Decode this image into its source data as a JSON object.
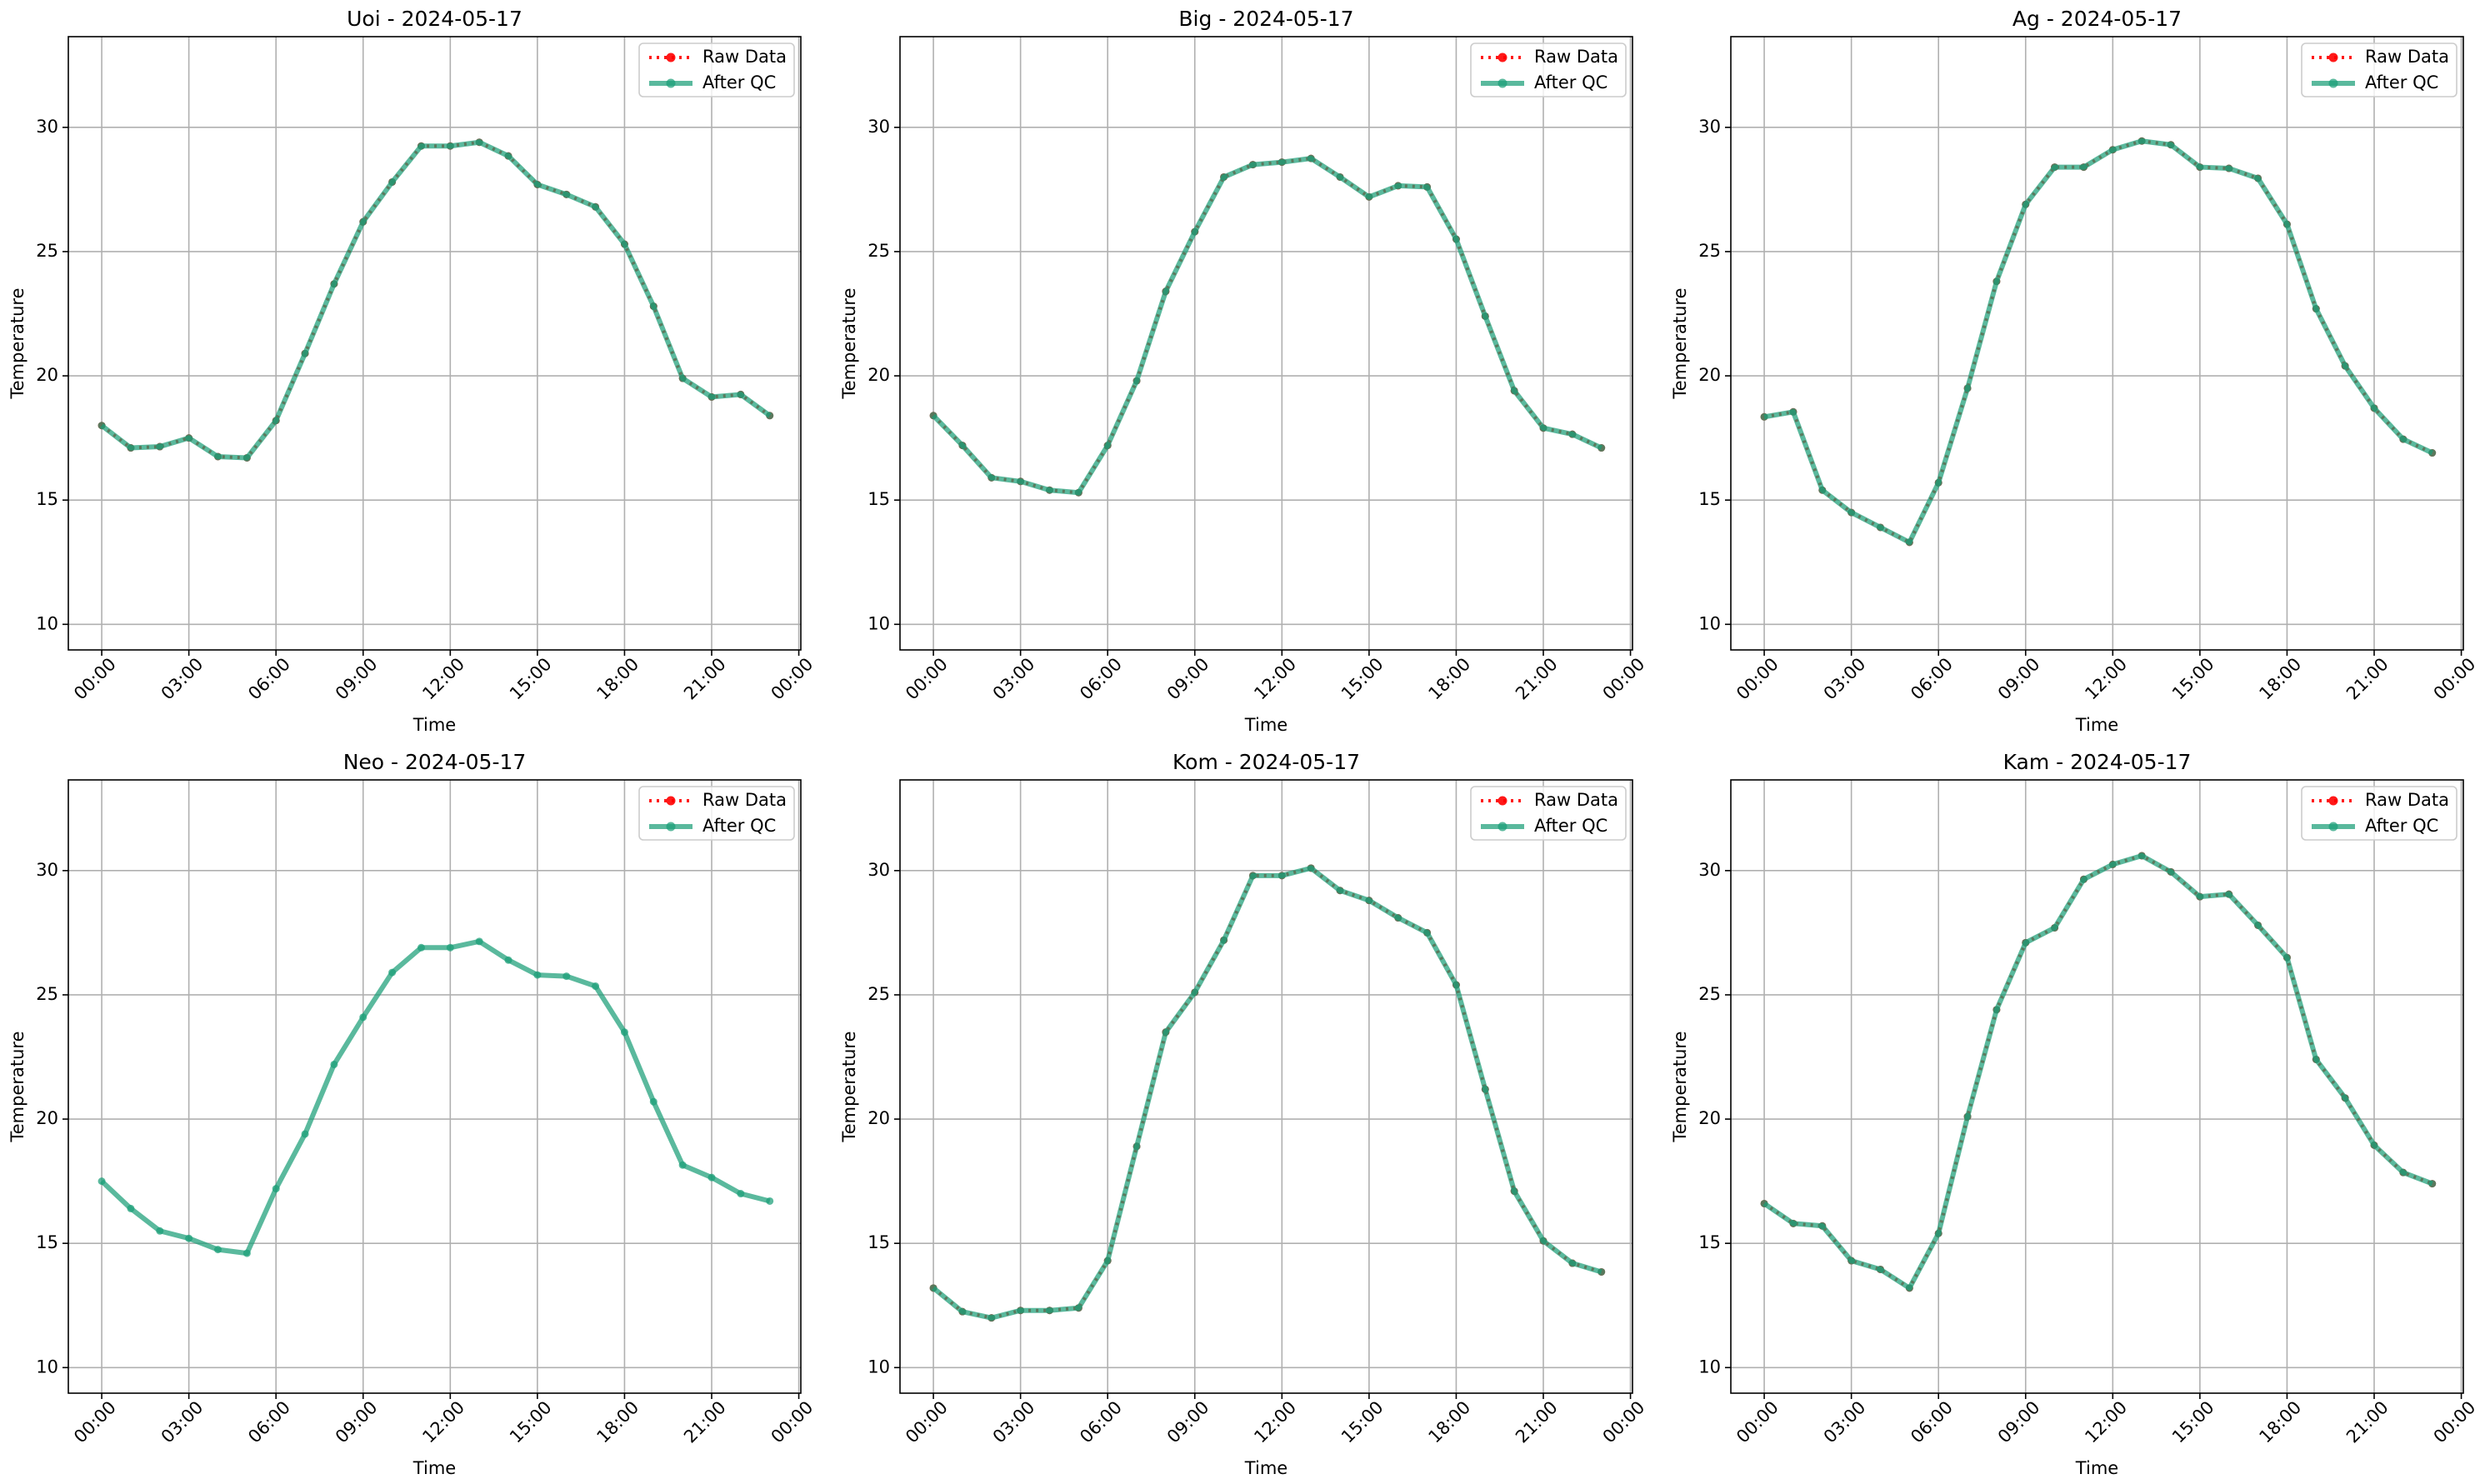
{
  "chart_data": [
    {
      "type": "line",
      "title": "Uoi - 2024-05-17",
      "xlabel": "Time",
      "ylabel": "Temperature",
      "grid": true,
      "legend": "upper right",
      "x": [
        0,
        1,
        2,
        3,
        4,
        5,
        6,
        7,
        8,
        9,
        10,
        11,
        12,
        13,
        14,
        15,
        16,
        17,
        18,
        19,
        20,
        21,
        22,
        23
      ],
      "xlim": [
        -1.15,
        24.07
      ],
      "xticks": [
        {
          "value": 0,
          "label": "00:00"
        },
        {
          "value": 3,
          "label": "03:00"
        },
        {
          "value": 6,
          "label": "06:00"
        },
        {
          "value": 9,
          "label": "09:00"
        },
        {
          "value": 12,
          "label": "12:00"
        },
        {
          "value": 15,
          "label": "15:00"
        },
        {
          "value": 18,
          "label": "18:00"
        },
        {
          "value": 21,
          "label": "21:00"
        },
        {
          "value": 24,
          "label": "00:00"
        }
      ],
      "ylim": [
        8.97,
        33.65
      ],
      "yticks": [
        10,
        15,
        20,
        25,
        30
      ],
      "series": [
        {
          "name": "Raw Data",
          "color": "#ff0000",
          "values": [
            18.0,
            17.1,
            17.15,
            17.5,
            16.75,
            16.7,
            18.2,
            20.9,
            23.7,
            26.2,
            27.8,
            29.25,
            29.25,
            29.4,
            28.85,
            27.7,
            27.3,
            26.8,
            25.3,
            22.8,
            19.9,
            19.15,
            19.25,
            18.4
          ]
        },
        {
          "name": "After QC",
          "color": "#1b9e77",
          "values": [
            18.0,
            17.1,
            17.15,
            17.5,
            16.75,
            16.7,
            18.2,
            20.9,
            23.7,
            26.2,
            27.8,
            29.25,
            29.25,
            29.4,
            28.85,
            27.7,
            27.3,
            26.8,
            25.3,
            22.8,
            19.9,
            19.15,
            19.25,
            18.4
          ]
        }
      ]
    },
    {
      "type": "line",
      "title": "Big - 2024-05-17",
      "xlabel": "Time",
      "ylabel": "Temperature",
      "grid": true,
      "legend": "upper right",
      "x": [
        0,
        1,
        2,
        3,
        4,
        5,
        6,
        7,
        8,
        9,
        10,
        11,
        12,
        13,
        14,
        15,
        16,
        17,
        18,
        19,
        20,
        21,
        22,
        23
      ],
      "xlim": [
        -1.15,
        24.07
      ],
      "xticks": [
        {
          "value": 0,
          "label": "00:00"
        },
        {
          "value": 3,
          "label": "03:00"
        },
        {
          "value": 6,
          "label": "06:00"
        },
        {
          "value": 9,
          "label": "09:00"
        },
        {
          "value": 12,
          "label": "12:00"
        },
        {
          "value": 15,
          "label": "15:00"
        },
        {
          "value": 18,
          "label": "18:00"
        },
        {
          "value": 21,
          "label": "21:00"
        },
        {
          "value": 24,
          "label": "00:00"
        }
      ],
      "ylim": [
        8.97,
        33.65
      ],
      "yticks": [
        10,
        15,
        20,
        25,
        30
      ],
      "series": [
        {
          "name": "Raw Data",
          "color": "#ff0000",
          "values": [
            18.4,
            17.2,
            15.9,
            15.75,
            15.4,
            15.3,
            17.2,
            19.8,
            23.4,
            25.8,
            28.0,
            28.5,
            28.6,
            28.75,
            28.0,
            27.2,
            27.65,
            27.6,
            25.5,
            22.4,
            19.4,
            17.9,
            17.65,
            17.1
          ]
        },
        {
          "name": "After QC",
          "color": "#1b9e77",
          "values": [
            18.4,
            17.2,
            15.9,
            15.75,
            15.4,
            15.3,
            17.2,
            19.8,
            23.4,
            25.8,
            28.0,
            28.5,
            28.6,
            28.75,
            28.0,
            27.2,
            27.65,
            27.6,
            25.5,
            22.4,
            19.4,
            17.9,
            17.65,
            17.1
          ]
        }
      ]
    },
    {
      "type": "line",
      "title": "Ag - 2024-05-17",
      "xlabel": "Time",
      "ylabel": "Temperature",
      "grid": true,
      "legend": "upper right",
      "x": [
        0,
        1,
        2,
        3,
        4,
        5,
        6,
        7,
        8,
        9,
        10,
        11,
        12,
        13,
        14,
        15,
        16,
        17,
        18,
        19,
        20,
        21,
        22,
        23
      ],
      "xlim": [
        -1.15,
        24.07
      ],
      "xticks": [
        {
          "value": 0,
          "label": "00:00"
        },
        {
          "value": 3,
          "label": "03:00"
        },
        {
          "value": 6,
          "label": "06:00"
        },
        {
          "value": 9,
          "label": "09:00"
        },
        {
          "value": 12,
          "label": "12:00"
        },
        {
          "value": 15,
          "label": "15:00"
        },
        {
          "value": 18,
          "label": "18:00"
        },
        {
          "value": 21,
          "label": "21:00"
        },
        {
          "value": 24,
          "label": "00:00"
        }
      ],
      "ylim": [
        8.97,
        33.65
      ],
      "yticks": [
        10,
        15,
        20,
        25,
        30
      ],
      "series": [
        {
          "name": "Raw Data",
          "color": "#ff0000",
          "values": [
            18.35,
            18.55,
            15.4,
            14.5,
            13.9,
            13.3,
            15.7,
            19.5,
            23.8,
            26.9,
            28.4,
            28.4,
            29.1,
            29.45,
            29.3,
            28.4,
            28.35,
            27.95,
            26.1,
            22.7,
            20.4,
            18.7,
            17.45,
            16.9
          ]
        },
        {
          "name": "After QC",
          "color": "#1b9e77",
          "values": [
            18.35,
            18.55,
            15.4,
            14.5,
            13.9,
            13.3,
            15.7,
            19.5,
            23.8,
            26.9,
            28.4,
            28.4,
            29.1,
            29.45,
            29.3,
            28.4,
            28.35,
            27.95,
            26.1,
            22.7,
            20.4,
            18.7,
            17.45,
            16.9
          ]
        }
      ]
    },
    {
      "type": "line",
      "title": "Neo - 2024-05-17",
      "xlabel": "Time",
      "ylabel": "Temperature",
      "grid": true,
      "legend": "upper right",
      "x": [
        0,
        1,
        2,
        3,
        4,
        5,
        6,
        7,
        8,
        9,
        10,
        11,
        12,
        13,
        14,
        15,
        16,
        17,
        18,
        19,
        20,
        21,
        22,
        23
      ],
      "xlim": [
        -1.15,
        24.07
      ],
      "xticks": [
        {
          "value": 0,
          "label": "00:00"
        },
        {
          "value": 3,
          "label": "03:00"
        },
        {
          "value": 6,
          "label": "06:00"
        },
        {
          "value": 9,
          "label": "09:00"
        },
        {
          "value": 12,
          "label": "12:00"
        },
        {
          "value": 15,
          "label": "15:00"
        },
        {
          "value": 18,
          "label": "18:00"
        },
        {
          "value": 21,
          "label": "21:00"
        },
        {
          "value": 24,
          "label": "00:00"
        }
      ],
      "ylim": [
        8.97,
        33.65
      ],
      "yticks": [
        10,
        15,
        20,
        25,
        30
      ],
      "series": [
        {
          "name": "Raw Data",
          "color": "#ff0000",
          "values": [
            null,
            null,
            null,
            null,
            null,
            null,
            null,
            null,
            null,
            null,
            null,
            null,
            null,
            null,
            null,
            null,
            null,
            null,
            null,
            null,
            null,
            null,
            null,
            null
          ]
        },
        {
          "name": "After QC",
          "color": "#1b9e77",
          "values": [
            17.5,
            16.4,
            15.5,
            15.2,
            14.75,
            14.6,
            17.2,
            19.4,
            22.2,
            24.1,
            25.9,
            26.9,
            26.9,
            27.15,
            26.4,
            25.8,
            25.75,
            25.35,
            23.5,
            20.7,
            18.15,
            17.65,
            17.0,
            16.7
          ]
        }
      ]
    },
    {
      "type": "line",
      "title": "Kom - 2024-05-17",
      "xlabel": "Time",
      "ylabel": "Temperature",
      "grid": true,
      "legend": "upper right",
      "x": [
        0,
        1,
        2,
        3,
        4,
        5,
        6,
        7,
        8,
        9,
        10,
        11,
        12,
        13,
        14,
        15,
        16,
        17,
        18,
        19,
        20,
        21,
        22,
        23
      ],
      "xlim": [
        -1.15,
        24.07
      ],
      "xticks": [
        {
          "value": 0,
          "label": "00:00"
        },
        {
          "value": 3,
          "label": "03:00"
        },
        {
          "value": 6,
          "label": "06:00"
        },
        {
          "value": 9,
          "label": "09:00"
        },
        {
          "value": 12,
          "label": "12:00"
        },
        {
          "value": 15,
          "label": "15:00"
        },
        {
          "value": 18,
          "label": "18:00"
        },
        {
          "value": 21,
          "label": "21:00"
        },
        {
          "value": 24,
          "label": "00:00"
        }
      ],
      "ylim": [
        8.97,
        33.65
      ],
      "yticks": [
        10,
        15,
        20,
        25,
        30
      ],
      "series": [
        {
          "name": "Raw Data",
          "color": "#ff0000",
          "values": [
            13.2,
            12.25,
            12.0,
            12.3,
            12.3,
            12.4,
            14.3,
            18.9,
            23.5,
            25.1,
            27.2,
            29.8,
            29.8,
            30.1,
            29.2,
            28.8,
            28.1,
            27.5,
            25.4,
            21.2,
            17.1,
            15.1,
            14.2,
            13.85
          ]
        },
        {
          "name": "After QC",
          "color": "#1b9e77",
          "values": [
            13.2,
            12.25,
            12.0,
            12.3,
            12.3,
            12.4,
            14.3,
            18.9,
            23.5,
            25.1,
            27.2,
            29.8,
            29.8,
            30.1,
            29.2,
            28.8,
            28.1,
            27.5,
            25.4,
            21.2,
            17.1,
            15.1,
            14.2,
            13.85
          ]
        }
      ]
    },
    {
      "type": "line",
      "title": "Kam - 2024-05-17",
      "xlabel": "Time",
      "ylabel": "Temperature",
      "grid": true,
      "legend": "upper right",
      "x": [
        0,
        1,
        2,
        3,
        4,
        5,
        6,
        7,
        8,
        9,
        10,
        11,
        12,
        13,
        14,
        15,
        16,
        17,
        18,
        19,
        20,
        21,
        22,
        23
      ],
      "xlim": [
        -1.15,
        24.07
      ],
      "xticks": [
        {
          "value": 0,
          "label": "00:00"
        },
        {
          "value": 3,
          "label": "03:00"
        },
        {
          "value": 6,
          "label": "06:00"
        },
        {
          "value": 9,
          "label": "09:00"
        },
        {
          "value": 12,
          "label": "12:00"
        },
        {
          "value": 15,
          "label": "15:00"
        },
        {
          "value": 18,
          "label": "18:00"
        },
        {
          "value": 21,
          "label": "21:00"
        },
        {
          "value": 24,
          "label": "00:00"
        }
      ],
      "ylim": [
        8.97,
        33.65
      ],
      "yticks": [
        10,
        15,
        20,
        25,
        30
      ],
      "series": [
        {
          "name": "Raw Data",
          "color": "#ff0000",
          "values": [
            16.6,
            15.8,
            15.7,
            14.3,
            13.95,
            13.2,
            15.4,
            20.1,
            24.4,
            27.1,
            27.7,
            29.65,
            30.25,
            30.6,
            29.95,
            28.95,
            29.05,
            27.8,
            26.5,
            22.4,
            20.85,
            18.95,
            17.85,
            17.4
          ]
        },
        {
          "name": "After QC",
          "color": "#1b9e77",
          "values": [
            16.6,
            15.8,
            15.7,
            14.3,
            13.95,
            13.2,
            15.4,
            20.1,
            24.4,
            27.1,
            27.7,
            29.65,
            30.25,
            30.6,
            29.95,
            28.95,
            29.05,
            27.8,
            26.5,
            22.4,
            20.85,
            18.95,
            17.85,
            17.4
          ]
        }
      ]
    }
  ]
}
